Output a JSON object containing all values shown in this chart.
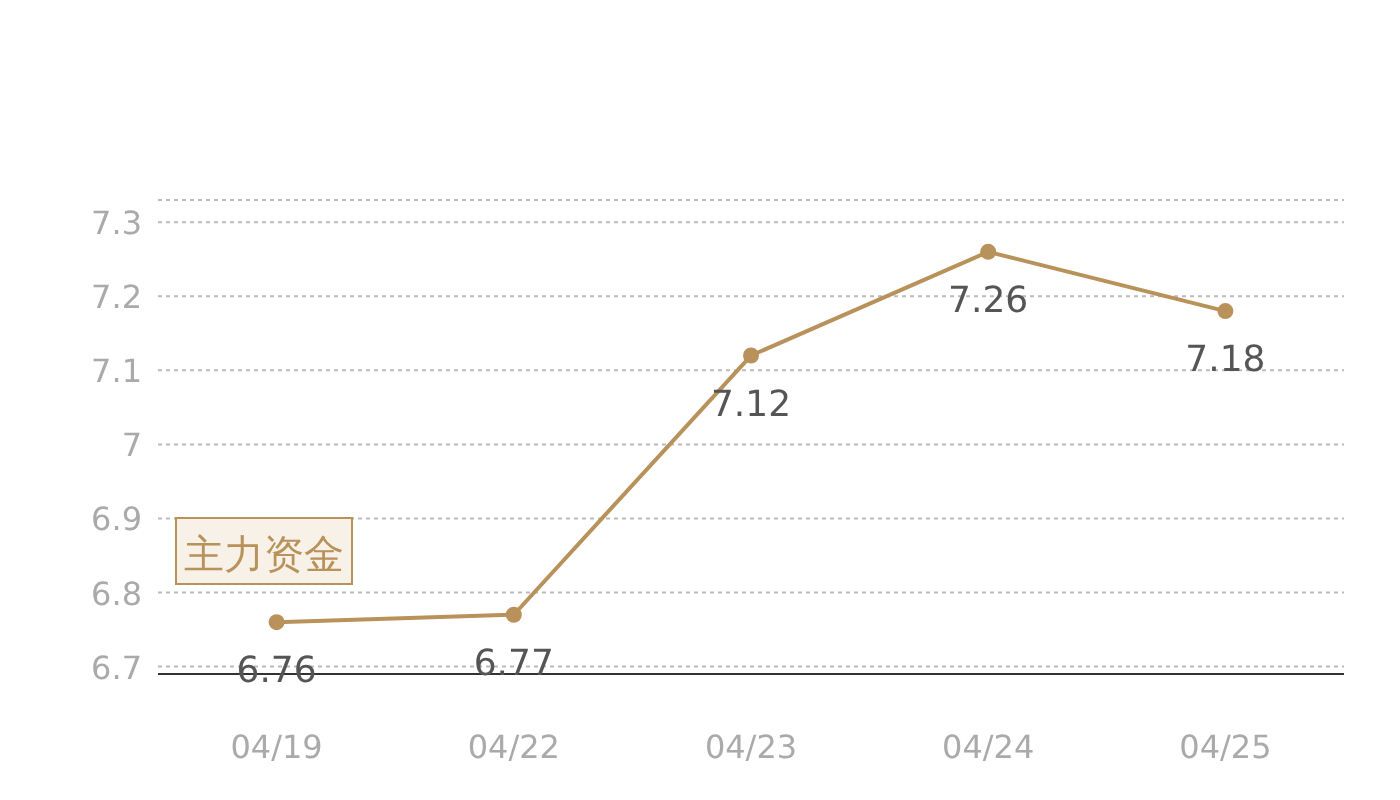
{
  "chart_data": {
    "type": "line",
    "categories": [
      "04/19",
      "04/22",
      "04/23",
      "04/24",
      "04/25"
    ],
    "series": [
      {
        "color": "#b8925a",
        "values": [
          6.76,
          6.77,
          7.12,
          7.26,
          7.18
        ]
      }
    ],
    "ylim": [
      6.69,
      7.33
    ],
    "yticks": [
      6.7,
      6.8,
      6.9,
      7,
      7.1,
      7.2,
      7.3
    ],
    "grid": "y",
    "marker": "circle",
    "data_labels": true,
    "annotations": [
      "主力资金"
    ]
  }
}
